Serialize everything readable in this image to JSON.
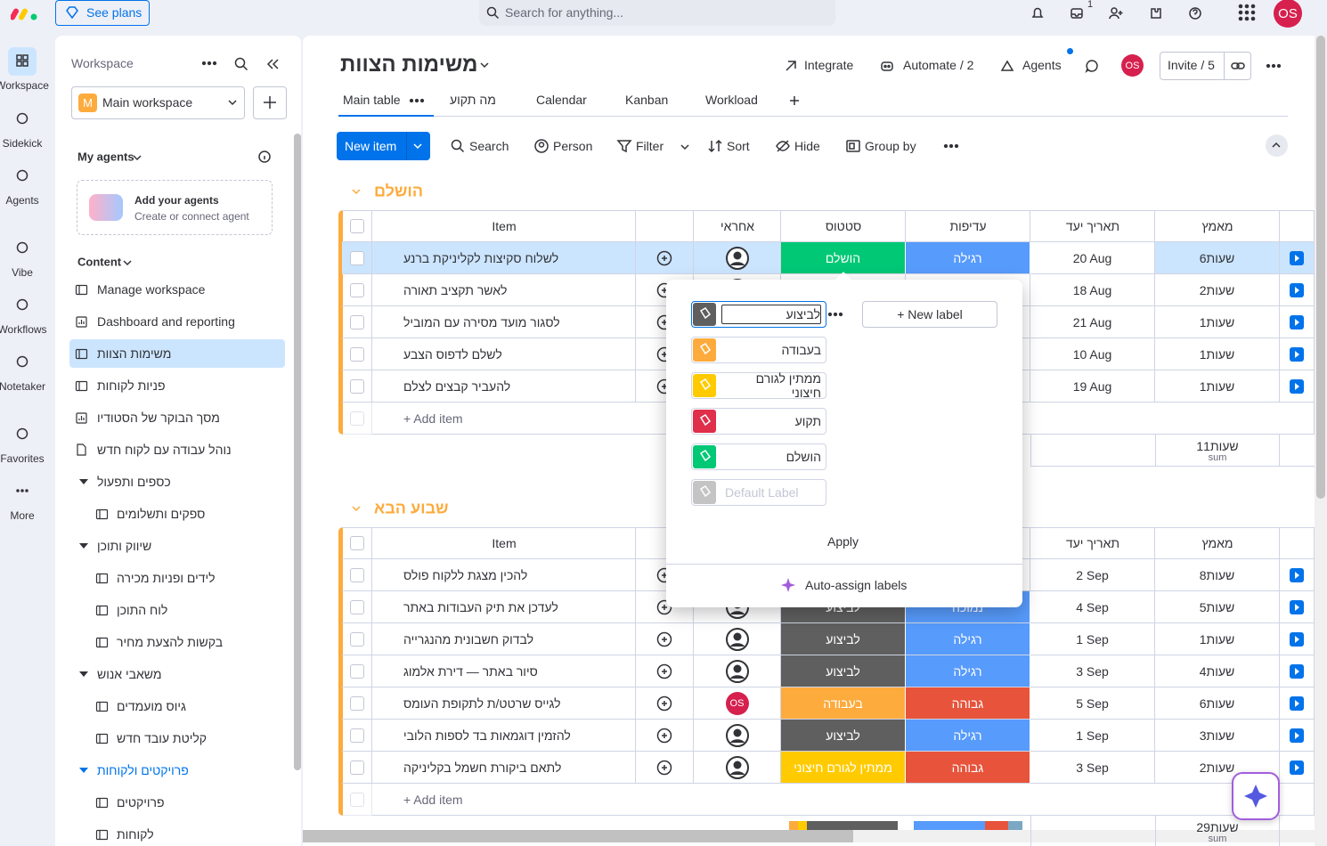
{
  "topbar": {
    "see_plans": "See plans",
    "search": "Search for anything...",
    "inbox_count": "1",
    "avatar": "OS"
  },
  "rail": [
    "Workspace",
    "Sidekick",
    "Agents",
    "Vibe",
    "Workflows",
    "Notetaker",
    "Favorites",
    "More"
  ],
  "sidebar": {
    "title": "Workspace",
    "workspace": "Main workspace",
    "workspace_initial": "M",
    "agents_heading": "My agents",
    "agent_card": {
      "title": "Add your agents",
      "subtitle": "Create or connect agent"
    },
    "content_heading": "Content",
    "items": [
      {
        "label": "Manage workspace",
        "level": 0,
        "kind": "manage"
      },
      {
        "label": "Dashboard and reporting",
        "level": 0,
        "kind": "dashboard"
      },
      {
        "label": "משימות הצוות",
        "level": 0,
        "kind": "board",
        "selected": true
      },
      {
        "label": "פניות לקוחות",
        "level": 0,
        "kind": "board"
      },
      {
        "label": "מסך הבוקר של הסטודיו",
        "level": 0,
        "kind": "dashboard"
      },
      {
        "label": "נוהל עבודה עם לקוח חדש",
        "level": 0,
        "kind": "doc"
      },
      {
        "label": "כספים ותפעול",
        "level": 0,
        "kind": "folder"
      },
      {
        "label": "ספקים ותשלומים",
        "level": 1,
        "kind": "board"
      },
      {
        "label": "שיווק ותוכן",
        "level": 0,
        "kind": "folder"
      },
      {
        "label": "לידים ופניות מכירה",
        "level": 1,
        "kind": "board"
      },
      {
        "label": "לוח התוכן",
        "level": 1,
        "kind": "board"
      },
      {
        "label": "בקשות להצעת מחיר",
        "level": 1,
        "kind": "board"
      },
      {
        "label": "משאבי אנוש",
        "level": 0,
        "kind": "folder"
      },
      {
        "label": "גיוס מועמדים",
        "level": 1,
        "kind": "board"
      },
      {
        "label": "קליטת עובד חדש",
        "level": 1,
        "kind": "board"
      },
      {
        "label": "פרויקטים ולקוחות",
        "level": 0,
        "kind": "folder",
        "active": true
      },
      {
        "label": "פרויקטים",
        "level": 1,
        "kind": "board"
      },
      {
        "label": "לקוחות",
        "level": 1,
        "kind": "board"
      }
    ]
  },
  "board": {
    "title": "משימות הצוות",
    "integrate": "Integrate",
    "automate": "Automate / 2",
    "agents": "Agents",
    "avatar": "OS",
    "invite": "Invite / 5",
    "tabs": [
      "Main table",
      "מה תקוע",
      "Calendar",
      "Kanban",
      "Workload"
    ],
    "toolbar": {
      "new_item": "New item",
      "search": "Search",
      "person": "Person",
      "filter": "Filter",
      "sort": "Sort",
      "hide": "Hide",
      "group_by": "Group by"
    },
    "columns": [
      "Item",
      "אחראי",
      "סטטוס",
      "עדיפות",
      "תאריך יעד",
      "מאמץ"
    ],
    "add_item": "+ Add item",
    "groups": [
      {
        "title": "הושלם",
        "color": "#fdab3d",
        "sum": "11שעות",
        "sum_label": "sum",
        "rows": [
          {
            "item": "לשלוח סקיצות לקליניקת ברנע",
            "owner": null,
            "status": {
              "label": "הושלם",
              "color": "#00c875"
            },
            "priority": {
              "label": "רגילה",
              "color": "#579bfc"
            },
            "date": "20 Aug",
            "effort": "6שעות",
            "selected": true
          },
          {
            "item": "לאשר תקציב תאורה",
            "owner": null,
            "status": null,
            "priority": null,
            "date": "18 Aug",
            "effort": "2שעות"
          },
          {
            "item": "לסגור מועד מסירה עם המוביל",
            "owner": null,
            "status": null,
            "priority": null,
            "date": "21 Aug",
            "effort": "1שעות"
          },
          {
            "item": "לשלם לדפוס הצבע",
            "owner": null,
            "status": null,
            "priority": null,
            "date": "10 Aug",
            "effort": "1שעות"
          },
          {
            "item": "להעביר קבצים לצלם",
            "owner": null,
            "status": null,
            "priority": null,
            "date": "19 Aug",
            "effort": "1שעות"
          }
        ]
      },
      {
        "title": "שבוע הבא",
        "color": "#fdab3d",
        "sum": "29שעות",
        "sum_label": "sum",
        "rows": [
          {
            "item": "להכין מצגת ללקוח פולס",
            "owner": null,
            "status": null,
            "priority": null,
            "date": "2 Sep",
            "effort": "8שעות"
          },
          {
            "item": "לעדכן את תיק העבודות באתר",
            "owner": null,
            "status": {
              "label": "לביצוע",
              "color": "#5f5f5f"
            },
            "priority": {
              "label": "נמוכה",
              "color": "#579bfc"
            },
            "date": "4 Sep",
            "effort": "5שעות"
          },
          {
            "item": "לבדוק חשבונית מהנגרייה",
            "owner": null,
            "status": {
              "label": "לביצוע",
              "color": "#5f5f5f"
            },
            "priority": {
              "label": "רגילה",
              "color": "#579bfc"
            },
            "date": "1 Sep",
            "effort": "1שעות"
          },
          {
            "item": "סיור באתר — דירת אלמוג",
            "owner": null,
            "status": {
              "label": "לביצוע",
              "color": "#5f5f5f"
            },
            "priority": {
              "label": "רגילה",
              "color": "#579bfc"
            },
            "date": "3 Sep",
            "effort": "4שעות"
          },
          {
            "item": "לגייס שרטט/ת לתקופת העומס",
            "owner": "OS",
            "status": {
              "label": "בעבודה",
              "color": "#fdab3d"
            },
            "priority": {
              "label": "גבוהה",
              "color": "#e8533b"
            },
            "date": "5 Sep",
            "effort": "6שעות"
          },
          {
            "item": "להזמין דוגמאות בד לספות הלובי",
            "owner": null,
            "status": {
              "label": "לביצוע",
              "color": "#5f5f5f"
            },
            "priority": {
              "label": "רגילה",
              "color": "#579bfc"
            },
            "date": "1 Sep",
            "effort": "3שעות"
          },
          {
            "item": "לתאם ביקורת חשמל בקליניקה",
            "owner": null,
            "status": {
              "label": "ממתין לגורם חיצוני",
              "color": "#ffcb00"
            },
            "priority": {
              "label": "גבוהה",
              "color": "#e8533b"
            },
            "date": "3 Sep",
            "effort": "2שעות"
          }
        ]
      }
    ]
  },
  "popup": {
    "input": {
      "label": "לביצוע",
      "color": "#5f5f5f"
    },
    "new_label": "+ New label",
    "labels": [
      {
        "label": "בעבודה",
        "color": "#fdab3d"
      },
      {
        "label": "ממתין לגורם חיצוני",
        "color": "#ffcb00"
      },
      {
        "label": "תקוע",
        "color": "#df2f4a"
      },
      {
        "label": "הושלם",
        "color": "#00c875"
      },
      {
        "label": "Default Label",
        "color": "#c4c4c4",
        "placeholder": true
      }
    ],
    "apply": "Apply",
    "auto_assign": "Auto-assign labels"
  }
}
